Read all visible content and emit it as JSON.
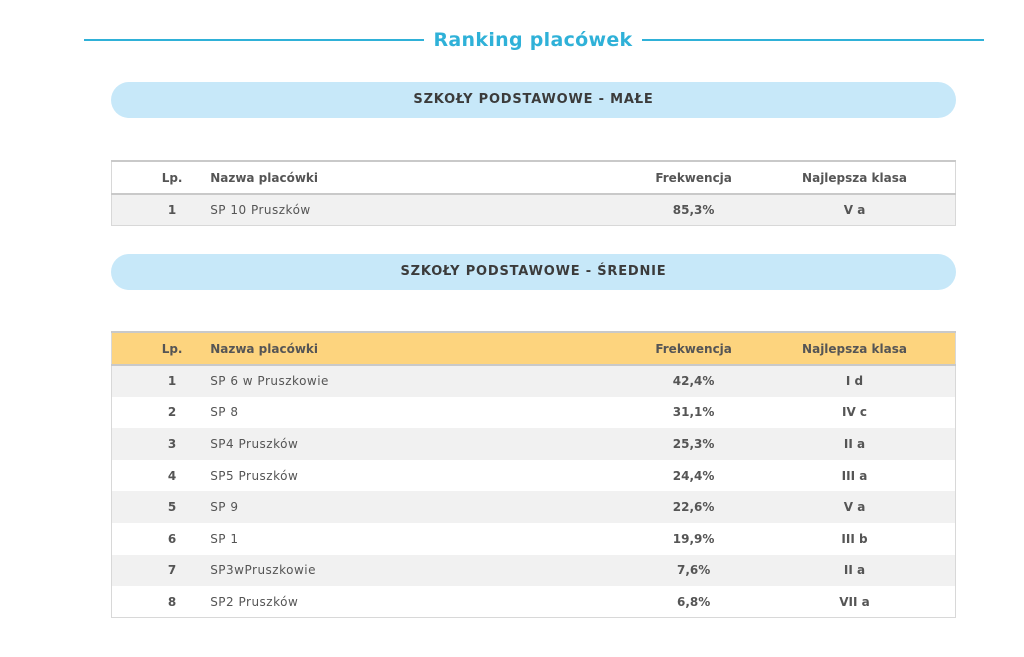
{
  "page_title": "Ranking placówek",
  "columns": {
    "lp": "Lp.",
    "name": "Nazwa placówki",
    "frequency": "Frekwencja",
    "best_class": "Najlepsza klasa"
  },
  "sections": [
    {
      "title": "SZKOŁY PODSTAWOWE - MAŁE",
      "rows": [
        {
          "lp": "1",
          "name": "SP 10 Pruszków",
          "frequency": "85,3%",
          "best_class": "V a"
        }
      ]
    },
    {
      "title": "SZKOŁY PODSTAWOWE - ŚREDNIE",
      "rows": [
        {
          "lp": "1",
          "name": "SP 6 w Pruszkowie",
          "frequency": "42,4%",
          "best_class": "I d"
        },
        {
          "lp": "2",
          "name": "SP 8",
          "frequency": "31,1%",
          "best_class": "IV c"
        },
        {
          "lp": "3",
          "name": "SP4 Pruszków",
          "frequency": "25,3%",
          "best_class": "II a"
        },
        {
          "lp": "4",
          "name": "SP5 Pruszków",
          "frequency": "24,4%",
          "best_class": "III a"
        },
        {
          "lp": "5",
          "name": "SP 9",
          "frequency": "22,6%",
          "best_class": "V a"
        },
        {
          "lp": "6",
          "name": "SP 1",
          "frequency": "19,9%",
          "best_class": "III b"
        },
        {
          "lp": "7",
          "name": "SP3wPruszkowie",
          "frequency": "7,6%",
          "best_class": "II a"
        },
        {
          "lp": "8",
          "name": "SP2 Pruszków",
          "frequency": "6,8%",
          "best_class": "VII a"
        }
      ]
    }
  ],
  "colors": {
    "accent": "#2fb1d8",
    "pill": "#c7e8f9",
    "header_highlight": "#fdd47e"
  }
}
